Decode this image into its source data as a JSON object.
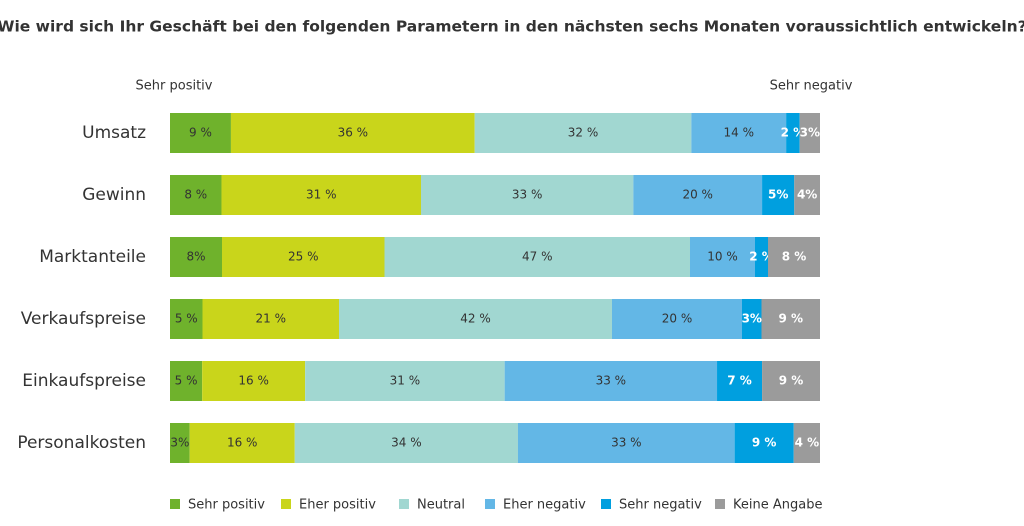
{
  "chart_data": {
    "type": "stacked-bar-horizontal",
    "title": "Wie wird sich Ihr Geschäft bei den folgenden Parametern in den nächsten sechs Monaten voraussichtlich entwickeln?",
    "annotations": {
      "left": "Sehr positiv",
      "right": "Sehr negativ"
    },
    "categories": [
      "Umsatz",
      "Gewinn",
      "Marktanteile",
      "Verkaufspreise",
      "Einkaufspreise",
      "Personalkosten"
    ],
    "series": [
      {
        "name": "Sehr positiv",
        "color": "#6fb22c",
        "label_color": "#333333",
        "values": [
          9,
          8,
          8,
          5,
          5,
          3
        ],
        "value_labels": [
          "9 %",
          "8 %",
          "8%",
          "5 %",
          "5 %",
          "3%"
        ]
      },
      {
        "name": "Eher positiv",
        "color": "#c9d51b",
        "label_color": "#333333",
        "values": [
          36,
          31,
          25,
          21,
          16,
          16
        ],
        "value_labels": [
          "36 %",
          "31 %",
          "25 %",
          "21 %",
          "16 %",
          "16 %"
        ]
      },
      {
        "name": "Neutral",
        "color": "#a1d7d1",
        "label_color": "#333333",
        "values": [
          32,
          33,
          47,
          42,
          31,
          34
        ],
        "value_labels": [
          "32 %",
          "33 %",
          "47 %",
          "42 %",
          "31 %",
          "34 %"
        ]
      },
      {
        "name": "Eher negativ",
        "color": "#63b7e6",
        "label_color": "#333333",
        "values": [
          14,
          20,
          10,
          20,
          33,
          33
        ],
        "value_labels": [
          "14 %",
          "20 %",
          "10 %",
          "20 %",
          "33 %",
          "33 %"
        ]
      },
      {
        "name": "Sehr negativ",
        "color": "#009fdf",
        "label_color": "#ffffff",
        "values": [
          2,
          5,
          2,
          3,
          7,
          9
        ],
        "value_labels": [
          "2 %",
          "5%",
          "2 %",
          "3%",
          "7 %",
          "9 %"
        ]
      },
      {
        "name": "Keine Angabe",
        "color": "#9b9b9b",
        "label_color": "#ffffff",
        "values": [
          3,
          4,
          8,
          9,
          9,
          4
        ],
        "value_labels": [
          "3%",
          "4%",
          "8 %",
          "9 %",
          "9 %",
          "4 %"
        ]
      }
    ]
  }
}
